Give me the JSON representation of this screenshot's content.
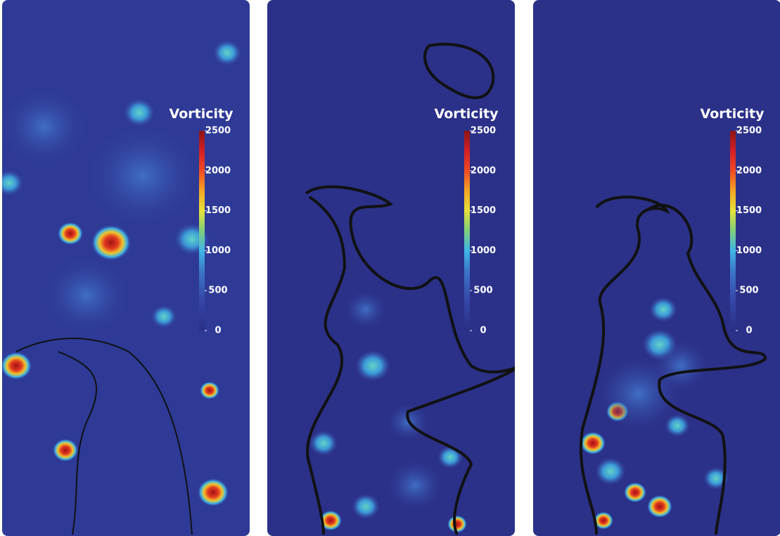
{
  "chart_data": [
    {
      "type": "heatmap",
      "colorbar_title": "Vorticity",
      "clim": [
        0,
        2500
      ],
      "cticks": [
        0,
        500,
        1000,
        1500,
        2000,
        2500
      ]
    },
    {
      "type": "heatmap",
      "colorbar_title": "Vorticity",
      "clim": [
        0,
        2500
      ],
      "cticks": [
        0,
        500,
        1000,
        1500,
        2000,
        2500
      ]
    },
    {
      "type": "heatmap",
      "colorbar_title": "Vorticity",
      "clim": [
        0,
        2500
      ],
      "cticks": [
        0,
        500,
        1000,
        1500,
        2000,
        2500
      ]
    }
  ]
}
